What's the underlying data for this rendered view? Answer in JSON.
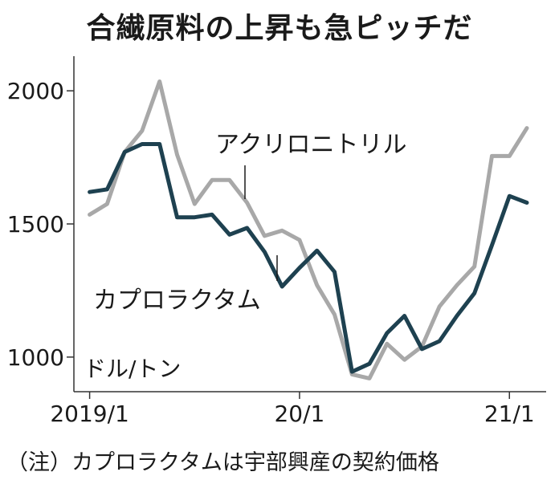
{
  "title": "合繊原料の上昇も急ピッチだ",
  "note": "（注）カプロラクタムは宇部興産の契約価格",
  "chart_data": {
    "type": "line",
    "unit_label": "ドル/トン",
    "ylim": [
      870,
      2130
    ],
    "y_ticks": [
      1000,
      1500,
      2000
    ],
    "x_ticks": [
      {
        "label": "2019/1",
        "x": 0
      },
      {
        "label": "20/1",
        "x": 12
      },
      {
        "label": "21/1",
        "x": 24
      }
    ],
    "xlim": [
      -0.9,
      26.1
    ],
    "grid": false,
    "series": [
      {
        "name": "アクリロニトリル",
        "color": "#a8a8a8",
        "x": [
          0,
          1,
          2,
          3,
          4,
          5,
          6,
          7,
          8,
          9,
          10,
          11,
          12,
          13,
          14,
          15,
          16,
          17,
          18,
          19,
          20,
          21,
          22,
          23,
          24,
          25
        ],
        "values": [
          1535,
          1575,
          1770,
          1850,
          2035,
          1760,
          1575,
          1665,
          1665,
          1580,
          1455,
          1475,
          1440,
          1270,
          1160,
          935,
          920,
          1050,
          990,
          1040,
          1190,
          1270,
          1340,
          1755,
          1755,
          1860
        ]
      },
      {
        "name": "カプロラクタム",
        "color": "#1e4150",
        "x": [
          0,
          1,
          2,
          3,
          4,
          5,
          6,
          7,
          8,
          9,
          10,
          11,
          12,
          13,
          14,
          15,
          16,
          17,
          18,
          19,
          20,
          21,
          22,
          23,
          24,
          25
        ],
        "values": [
          1620,
          1630,
          1770,
          1800,
          1800,
          1525,
          1525,
          1535,
          1460,
          1485,
          1395,
          1265,
          1335,
          1400,
          1320,
          945,
          975,
          1090,
          1155,
          1030,
          1060,
          1155,
          1240,
          1420,
          1605,
          1580
        ]
      }
    ]
  }
}
